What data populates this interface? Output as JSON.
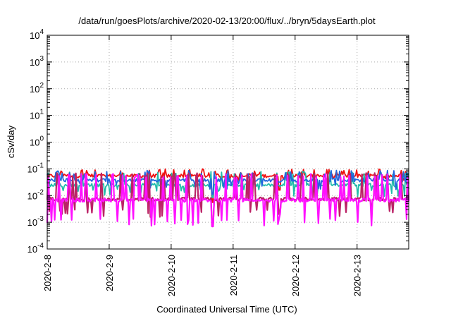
{
  "chart_data": {
    "type": "line",
    "title": "/data/run/goesPlots/archive/2020-02-13/20:00/flux/../bryn/5daysEarth.plot",
    "xlabel": "Coordinated Universal Time (UTC)",
    "ylabel": "cSv/day",
    "y_scale": "log",
    "ylim": [
      0.0001,
      10000
    ],
    "xlim": [
      "2020-02-08",
      "2020-02-13T20:00"
    ],
    "grid": true,
    "legend": "none",
    "x_ticks": [
      "2020-2-8",
      "2020-2-9",
      "2020-2-10",
      "2020-2-11",
      "2020-2-12",
      "2020-2-13"
    ],
    "y_ticks": [
      {
        "value": 0.0001,
        "base": "10",
        "exp": "-4"
      },
      {
        "value": 0.001,
        "base": "10",
        "exp": "-3"
      },
      {
        "value": 0.01,
        "base": "10",
        "exp": "-2"
      },
      {
        "value": 0.1,
        "base": "10",
        "exp": "-1"
      },
      {
        "value": 1,
        "base": "10",
        "exp": "0"
      },
      {
        "value": 10,
        "base": "10",
        "exp": "1"
      },
      {
        "value": 100,
        "base": "10",
        "exp": "2"
      },
      {
        "value": 1000,
        "base": "10",
        "exp": "3"
      },
      {
        "value": 10000,
        "base": "10",
        "exp": "4"
      }
    ],
    "series": [
      {
        "color": "#ee1111",
        "base_value": 0.055,
        "spike_value": 0.1,
        "dip_value": 0.035
      },
      {
        "color": "#22bbaa",
        "base_value": 0.025,
        "spike_value": 0.08,
        "dip_value": 0.009
      },
      {
        "color": "#2266dd",
        "base_value": 0.038,
        "spike_value": 0.09,
        "dip_value": 0.015
      },
      {
        "color": "#bb2266",
        "base_value": 0.0075,
        "spike_value": 0.07,
        "dip_value": 0.0015
      },
      {
        "color": "#ff11ff",
        "base_value": 0.0068,
        "spike_value": 0.065,
        "dip_value": 0.0007
      }
    ],
    "notable_dips": [
      {
        "x": "2020-02-10T16:00",
        "value": 0.0007
      },
      {
        "x": "2020-02-11T18:00",
        "value": 0.002
      }
    ]
  }
}
